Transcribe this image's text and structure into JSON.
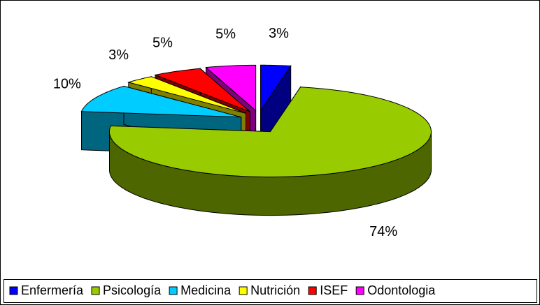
{
  "chart_data": {
    "type": "pie3d",
    "categories": [
      "Enfermería",
      "Psicología",
      "Medicina",
      "Nutrición",
      "ISEF",
      "Odontologia"
    ],
    "values": [
      3,
      74,
      10,
      3,
      5,
      5
    ],
    "value_labels": [
      "3%",
      "74%",
      "10%",
      "3%",
      "5%",
      "5%"
    ],
    "colors": [
      "#0000ff",
      "#99cc00",
      "#00ccff",
      "#ffff00",
      "#ff0000",
      "#ff00ff"
    ],
    "legend": "bottom"
  }
}
